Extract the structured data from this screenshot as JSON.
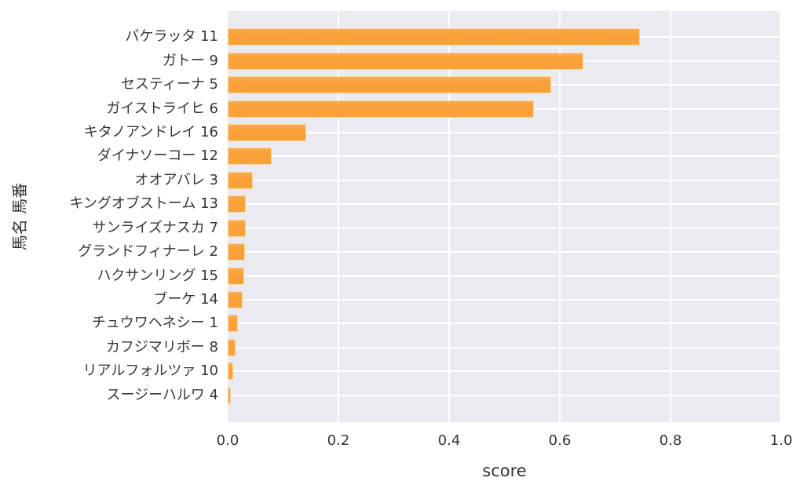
{
  "chart_data": {
    "type": "bar",
    "orientation": "horizontal",
    "title": "",
    "xlabel": "score",
    "ylabel": "馬名 馬番",
    "categories": [
      "バケラッタ 11",
      "ガトー 9",
      "セスティーナ 5",
      "ガイストライヒ 6",
      "キタノアンドレイ 16",
      "ダイナソーコー 12",
      "オオアバレ 3",
      "キングオブストーム 13",
      "サンライズナスカ 7",
      "グランドフィナーレ 2",
      "ハクサンリング 15",
      "ブーケ 14",
      "チュウワヘネシー 1",
      "カフジマリボー 8",
      "リアルフォルツァ 10",
      "スージーハルワ 4"
    ],
    "values": [
      0.745,
      0.642,
      0.584,
      0.553,
      0.142,
      0.079,
      0.046,
      0.033,
      0.032,
      0.031,
      0.03,
      0.027,
      0.019,
      0.014,
      0.01,
      0.005
    ],
    "xlim": [
      0.0,
      1.0
    ],
    "x_ticks": [
      {
        "value": 0.0,
        "label": "0.0"
      },
      {
        "value": 0.2,
        "label": "0.2"
      },
      {
        "value": 0.4,
        "label": "0.4"
      },
      {
        "value": 0.6,
        "label": "0.6"
      },
      {
        "value": 0.8,
        "label": "0.8"
      },
      {
        "value": 1.0,
        "label": "1.0"
      }
    ],
    "grid": true,
    "legend": false
  },
  "style": {
    "bar_color": "#f9a139",
    "bar_color_light": "#fbab4d",
    "bar_edge_color": "#fcd9a6",
    "plot_background": "#eaeaf1",
    "grid_color": "#ffffff",
    "tick_text_color": "#32363c",
    "axis_label_color": "#2e3237"
  }
}
